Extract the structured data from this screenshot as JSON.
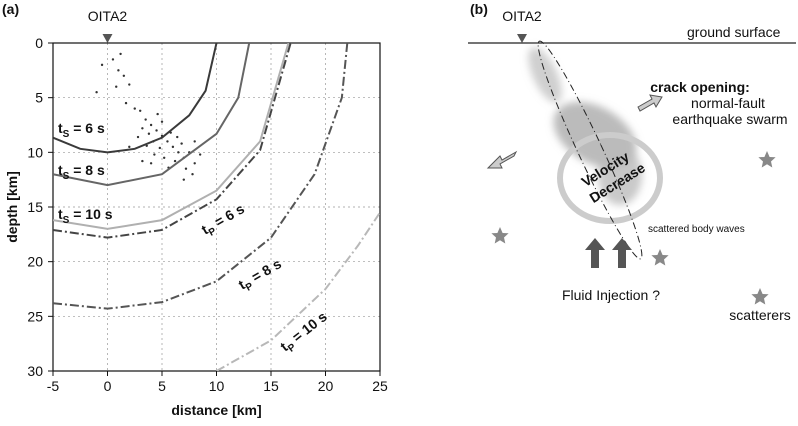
{
  "panel_label": "(a)",
  "chart_data": {
    "type": "line",
    "station": {
      "label": "OITA2",
      "x": 0
    },
    "x_label": "distance [km]",
    "y_label": "depth [km]",
    "xlim": [
      -5,
      25
    ],
    "ylim": [
      0,
      30
    ],
    "xticks": [
      -5,
      0,
      5,
      10,
      15,
      20,
      25
    ],
    "yticks": [
      0,
      5,
      10,
      15,
      20,
      25,
      30
    ],
    "grid": true,
    "y_inverted": true,
    "series": [
      {
        "type": "scatter",
        "color": "#333333",
        "x": [
          0.5,
          1,
          1.5,
          0.8,
          1.2,
          2,
          -0.5,
          1.7,
          -1,
          2.5,
          3.5,
          4,
          4.5,
          5,
          3.8,
          4.2,
          5.5,
          6,
          6.5,
          7,
          7.5,
          8,
          5,
          4.6,
          3.2,
          4.8,
          5.8,
          6.8,
          7.2,
          7.8,
          6.2,
          3,
          4.3,
          5.2,
          8.5,
          2.8,
          3.6,
          6.4,
          7,
          5.6,
          4,
          2,
          8,
          3.2
        ],
        "values": [
          1.5,
          2.5,
          3,
          4,
          1,
          3.8,
          2,
          5.5,
          4.5,
          6,
          7,
          7.5,
          8,
          8.5,
          8.3,
          9,
          9,
          9.5,
          10,
          10.5,
          10,
          11,
          7.2,
          6.5,
          7.8,
          9.6,
          8.2,
          9.2,
          11.5,
          12,
          10.8,
          6.2,
          10.2,
          10.5,
          10.2,
          8.6,
          9.4,
          8.6,
          12.5,
          11.4,
          11,
          9.5,
          9,
          10.8
        ]
      },
      {
        "type": "line",
        "color": "#3a3a3a",
        "dash": "solid",
        "x": [
          -5,
          -2.5,
          0,
          2.5,
          5,
          7.5,
          9,
          10
        ],
        "values": [
          8.66,
          9.68,
          10,
          9.68,
          8.66,
          6.61,
          4.36,
          0
        ]
      },
      {
        "type": "line",
        "color": "#666666",
        "dash": "solid",
        "x": [
          -5,
          0,
          5,
          10,
          12,
          13
        ],
        "values": [
          12,
          13,
          12,
          8.31,
          5,
          0
        ]
      },
      {
        "type": "line",
        "color": "#b0b0b0",
        "dash": "solid",
        "x": [
          -5,
          0,
          5,
          10,
          14,
          16.6
        ],
        "values": [
          16.2,
          17,
          16.2,
          13.5,
          9,
          0
        ]
      },
      {
        "type": "line",
        "color": "#444444",
        "dash": "dashdot",
        "x": [
          -5,
          0,
          5,
          10,
          14,
          16.8
        ],
        "values": [
          17.1,
          17.8,
          17.1,
          14.3,
          9.8,
          0
        ]
      },
      {
        "type": "line",
        "color": "#555555",
        "dash": "dashdot",
        "x": [
          -5,
          0,
          5,
          10,
          15,
          19,
          21.5,
          22
        ],
        "values": [
          23.8,
          24.3,
          23.7,
          21.8,
          17.8,
          12,
          5,
          0
        ]
      },
      {
        "type": "line",
        "color": "#b8b8b8",
        "dash": "dashdot",
        "x": [
          10,
          15,
          20,
          23,
          25
        ],
        "values": [
          30,
          27.2,
          22.5,
          18.5,
          15.5
        ]
      }
    ],
    "annotations": [
      {
        "base": "t",
        "sub": "S",
        "rest": " = 6 s"
      },
      {
        "base": "t",
        "sub": "S",
        "rest": " = 8 s"
      },
      {
        "base": "t",
        "sub": "S",
        "rest": " = 10 s"
      },
      {
        "base": "t",
        "sub": "P",
        "rest": " = 6 s"
      },
      {
        "base": "t",
        "sub": "P",
        "rest": " = 8 s"
      },
      {
        "base": "t",
        "sub": "P",
        "rest": " = 10 s"
      }
    ]
  },
  "diagram": {
    "panel_label": "(b)",
    "station": "OITA2",
    "ground": "ground surface",
    "crack": [
      "crack opening:",
      "normal-fault",
      "earthquake swarm"
    ],
    "velocity": [
      "Velocity",
      "Decrease"
    ],
    "scattered": "scattered body waves",
    "fluid": "Fluid Injection ?",
    "scatterers": "scatterers"
  }
}
